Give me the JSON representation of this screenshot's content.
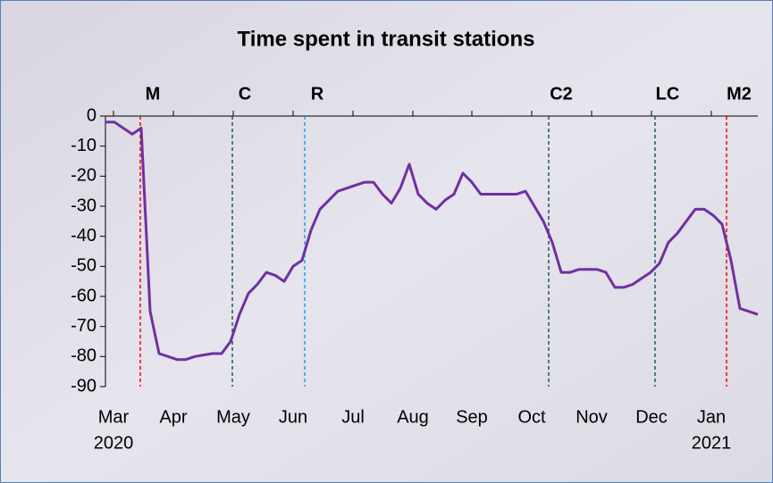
{
  "chart_data": {
    "type": "line",
    "title": "Time spent in transit stations",
    "ylim": [
      -90,
      0
    ],
    "yticks": [
      0,
      -10,
      -20,
      -30,
      -40,
      -50,
      -60,
      -70,
      -80,
      -90
    ],
    "xlim": [
      0,
      73
    ],
    "xticks": [
      {
        "value": 0.9,
        "label": "Mar"
      },
      {
        "value": 7.6,
        "label": "Apr"
      },
      {
        "value": 14.3,
        "label": "May"
      },
      {
        "value": 21.0,
        "label": "Jun"
      },
      {
        "value": 27.7,
        "label": "Jul"
      },
      {
        "value": 34.4,
        "label": "Aug"
      },
      {
        "value": 41.0,
        "label": "Sep"
      },
      {
        "value": 47.7,
        "label": "Oct"
      },
      {
        "value": 54.4,
        "label": "Nov"
      },
      {
        "value": 61.1,
        "label": "Dec"
      },
      {
        "value": 67.8,
        "label": "Jan"
      }
    ],
    "x_year_labels": [
      {
        "value": 0.9,
        "label": "2020"
      },
      {
        "value": 67.8,
        "label": "2021"
      }
    ],
    "series": [
      {
        "color": "#7030a0",
        "values": [
          -2,
          -2,
          -4,
          -6,
          -4,
          -65,
          -79,
          -80,
          -81,
          -81,
          -80,
          -79.5,
          -79,
          -79,
          -75,
          -66,
          -59,
          -56,
          -52,
          -53,
          -55,
          -50,
          -48,
          -38,
          -31,
          -28,
          -25,
          -24,
          -23,
          -22,
          -22,
          -26,
          -29,
          -24,
          -16,
          -26,
          -29,
          -31,
          -28,
          -26,
          -19,
          -22,
          -26,
          -26,
          -26,
          -26,
          -26,
          -25,
          -30,
          -35,
          -42,
          -52,
          -52,
          -51,
          -51,
          -51,
          -52,
          -57,
          -57,
          -56,
          -54,
          -52,
          -49,
          -42,
          -39,
          -35,
          -31,
          -31,
          -33,
          -36,
          -48,
          -64,
          -65,
          -66
        ]
      }
    ],
    "events": [
      {
        "label": "M",
        "x": 3.9,
        "color": "#ff0000"
      },
      {
        "label": "C",
        "x": 14.2,
        "color": "#215868"
      },
      {
        "label": "R",
        "x": 22.3,
        "color": "#1fa3e8"
      },
      {
        "label": "C2",
        "x": 49.6,
        "color": "#215868"
      },
      {
        "label": "LC",
        "x": 61.5,
        "color": "#215868"
      },
      {
        "label": "M2",
        "x": 69.5,
        "color": "#ff0000"
      }
    ]
  }
}
